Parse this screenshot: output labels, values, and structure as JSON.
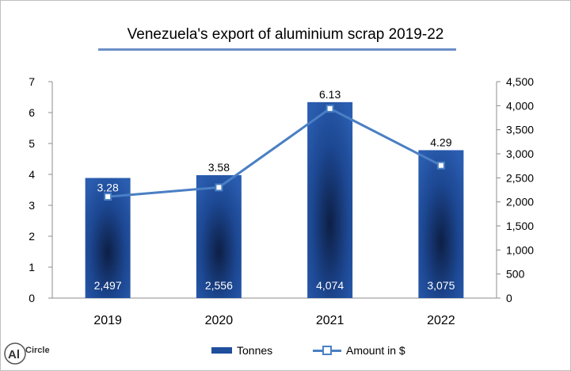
{
  "chart_data": {
    "type": "bar",
    "title": "Venezuela's  export of aluminium  scrap 2019-22",
    "categories": [
      "2019",
      "2020",
      "2021",
      "2022"
    ],
    "series": [
      {
        "name": "Tonnes",
        "kind": "bar",
        "axis": "right",
        "values": [
          2497,
          2556,
          4074,
          3075
        ],
        "labels": [
          "2,497",
          "2,556",
          "4,074",
          "3,075"
        ],
        "color": "#1f4e9c"
      },
      {
        "name": "Amount in $",
        "kind": "line",
        "axis": "left",
        "values": [
          3.28,
          3.58,
          6.13,
          4.29
        ],
        "labels": [
          "3.28",
          "3.58",
          "6.13",
          "4.29"
        ],
        "color": "#4a7fc4"
      }
    ],
    "y_left": {
      "min": 0,
      "max": 7,
      "ticks": [
        "0",
        "1",
        "2",
        "3",
        "4",
        "5",
        "6",
        "7"
      ]
    },
    "y_right": {
      "min": 0,
      "max": 4500,
      "ticks": [
        "0",
        "500",
        "1,000",
        "1,500",
        "2,000",
        "2,500",
        "3,000",
        "3,500",
        "4,000",
        "4,500"
      ]
    },
    "grid": false,
    "legend_position": "bottom"
  },
  "logo": {
    "text": "Al",
    "brand": "Circle"
  }
}
